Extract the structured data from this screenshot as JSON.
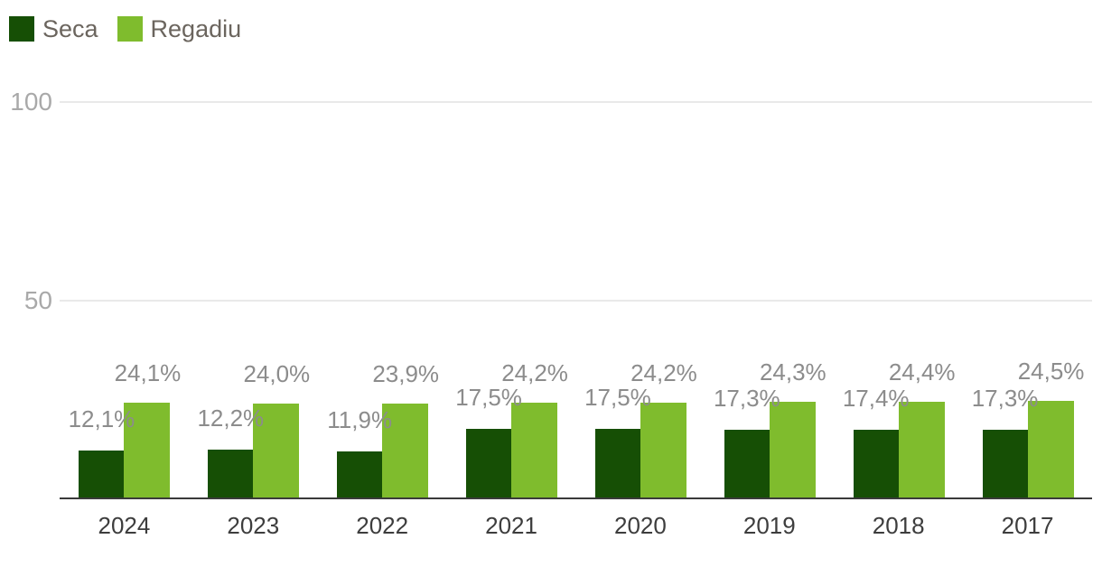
{
  "chart_data": {
    "type": "bar",
    "title": "",
    "categories": [
      "2024",
      "2023",
      "2022",
      "2021",
      "2020",
      "2019",
      "2018",
      "2017"
    ],
    "series": [
      {
        "name": "Seca",
        "color": "#164f05",
        "values": [
          12.1,
          12.2,
          11.9,
          17.5,
          17.5,
          17.3,
          17.4,
          17.3
        ],
        "labels": [
          "12,1%",
          "12,2%",
          "11,9%",
          "17,5%",
          "17,5%",
          "17,3%",
          "17,4%",
          "17,3%"
        ]
      },
      {
        "name": "Regadiu",
        "color": "#7fbc2d",
        "values": [
          24.1,
          24.0,
          23.9,
          24.2,
          24.2,
          24.3,
          24.4,
          24.5
        ],
        "labels": [
          "24,1%",
          "24,0%",
          "23,9%",
          "24,2%",
          "24,2%",
          "24,3%",
          "24,4%",
          "24,5%"
        ]
      }
    ],
    "yticks": [
      {
        "value": 100,
        "label": "100"
      },
      {
        "value": 50,
        "label": "50"
      }
    ],
    "ylim": [
      0,
      110
    ],
    "unit": "%",
    "legend_position": "top-left",
    "grid": "horizontal",
    "xlabel": "",
    "ylabel": ""
  },
  "colors": {
    "background": "#ffffff",
    "gridline": "#e9e9e9",
    "axis_line": "#3a3a3a",
    "ytick_text": "#a9a9a9",
    "data_label_text": "#8c8c8c",
    "category_label_text": "#3d3d3d",
    "legend_text": "#6b655e"
  }
}
